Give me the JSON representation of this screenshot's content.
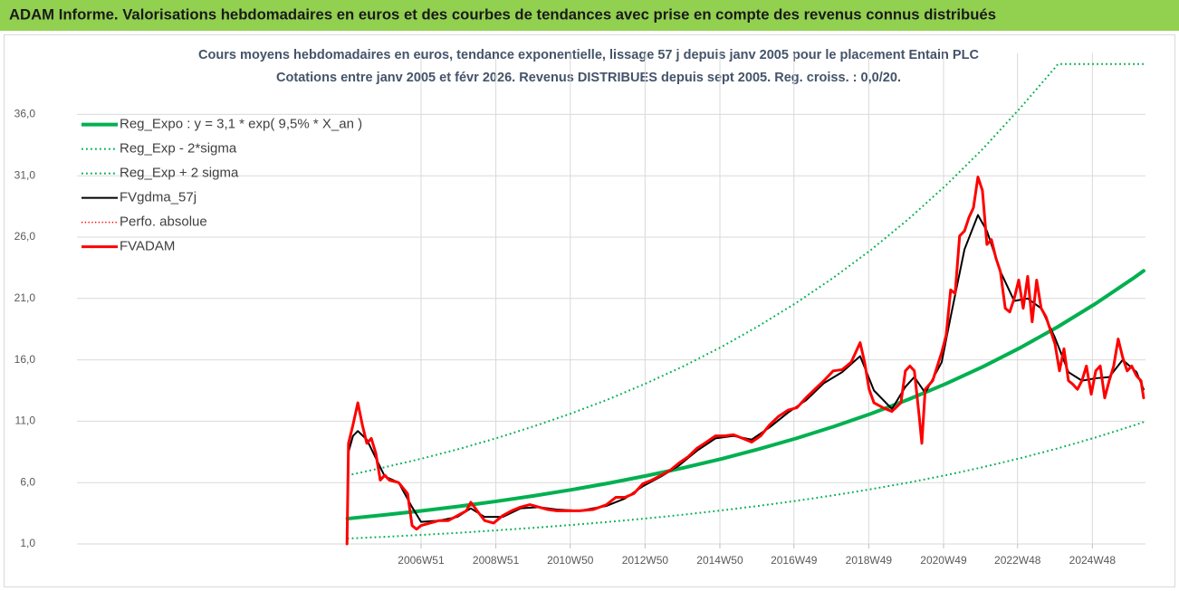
{
  "chart_data": {
    "type": "line",
    "header": "ADAM Informe. Valorisations hebdomadaires en euros et des courbes de tendances avec prise en compte des revenus connus distribués",
    "title": "Cours moyens hebdomadaires en euros, tendance exponentielle, lissage 57 j depuis janv 2005 pour le placement Entain PLC",
    "subtitle": "Cotations entre janv 2005 et févr 2026. Revenus DISTRIBUES depuis sept 2005. Reg. croiss. : 0,0/20.",
    "xlim": [
      1997.77,
      2026.34
    ],
    "ylim": [
      1,
      41
    ],
    "xticks": [
      {
        "value": 2006.97,
        "label": "2006W51"
      },
      {
        "value": 2008.97,
        "label": "2008W51"
      },
      {
        "value": 2010.96,
        "label": "2010W50"
      },
      {
        "value": 2012.96,
        "label": "2012W50"
      },
      {
        "value": 2014.96,
        "label": "2014W50"
      },
      {
        "value": 2016.94,
        "label": "2016W49"
      },
      {
        "value": 2018.94,
        "label": "2018W49"
      },
      {
        "value": 2020.94,
        "label": "2020W49"
      },
      {
        "value": 2022.92,
        "label": "2022W48"
      },
      {
        "value": 2024.92,
        "label": "2024W48"
      }
    ],
    "yticks": [
      {
        "value": 1,
        "label": "1,0"
      },
      {
        "value": 6,
        "label": "6,0"
      },
      {
        "value": 11,
        "label": "11,0"
      },
      {
        "value": 16,
        "label": "16,0"
      },
      {
        "value": 21,
        "label": "21,0"
      },
      {
        "value": 26,
        "label": "26,0"
      },
      {
        "value": 31,
        "label": "31,0"
      },
      {
        "value": 36,
        "label": "36,0"
      }
    ],
    "grid": true,
    "legend": "top-left",
    "series": [
      {
        "name": "Reg_Expo : y = 3,1 * exp( 9,5% *  X_an )",
        "color": "#00b050",
        "line_style": "solid",
        "line_width": 4,
        "x": [
          2005,
          2006,
          2007,
          2008,
          2009,
          2010,
          2011,
          2012,
          2013,
          2014,
          2015,
          2016,
          2017,
          2018,
          2019,
          2020,
          2021,
          2022,
          2023,
          2024,
          2025,
          2026,
          2026.29
        ],
        "values": [
          3.06,
          3.37,
          3.7,
          4.07,
          4.48,
          4.93,
          5.42,
          5.96,
          6.56,
          7.21,
          7.93,
          8.73,
          9.6,
          10.56,
          11.61,
          12.77,
          14.05,
          15.45,
          17.0,
          18.7,
          20.57,
          22.62,
          23.25
        ]
      },
      {
        "name": "Reg_Exp - 2*sigma",
        "color": "#00b050",
        "line_style": "dotted",
        "line_width": 2,
        "x": [
          2005,
          2006,
          2007,
          2008,
          2009,
          2010,
          2011,
          2012,
          2013,
          2014,
          2015,
          2016,
          2017,
          2018,
          2019,
          2020,
          2021,
          2022,
          2023,
          2024,
          2025,
          2026,
          2026.29
        ],
        "values": [
          1.44,
          1.58,
          1.74,
          1.91,
          2.11,
          2.32,
          2.55,
          2.8,
          3.08,
          3.39,
          3.73,
          4.1,
          4.51,
          4.96,
          5.46,
          6.0,
          6.6,
          7.26,
          7.99,
          8.79,
          9.67,
          10.63,
          10.93
        ]
      },
      {
        "name": "Reg_Exp + 2 sigma",
        "color": "#00b050",
        "line_style": "dotted",
        "line_width": 2,
        "x": [
          2005,
          2006,
          2007,
          2008,
          2009,
          2010,
          2011,
          2012,
          2013,
          2014,
          2015,
          2016,
          2017,
          2018,
          2019,
          2020,
          2021,
          2022,
          2023,
          2023.92,
          2024,
          2025,
          2026,
          2026.29
        ],
        "values": [
          6.58,
          7.25,
          7.96,
          8.75,
          9.63,
          10.6,
          11.65,
          12.81,
          14.1,
          15.5,
          17.05,
          18.77,
          20.64,
          22.7,
          24.96,
          27.46,
          30.21,
          33.22,
          36.55,
          39.8,
          40.1,
          40.1,
          40.1,
          40.1
        ]
      },
      {
        "name": "FVgdma_57j",
        "color": "#000000",
        "line_style": "solid",
        "line_width": 2,
        "x": [
          2005.03,
          2005.15,
          2005.28,
          2005.52,
          2005.76,
          2006.0,
          2006.37,
          2006.73,
          2006.97,
          2007.45,
          2007.94,
          2008.3,
          2008.67,
          2009.15,
          2009.63,
          2010.12,
          2010.6,
          2011.21,
          2011.93,
          2012.42,
          2012.9,
          2013.39,
          2013.87,
          2014.35,
          2014.84,
          2015.32,
          2015.81,
          2016.29,
          2016.78,
          2017.26,
          2017.74,
          2018.23,
          2018.71,
          2019.08,
          2019.56,
          2019.92,
          2020.16,
          2020.45,
          2020.89,
          2021.13,
          2021.5,
          2021.86,
          2022.1,
          2022.46,
          2022.83,
          2023.19,
          2023.55,
          2023.92,
          2024.28,
          2024.64,
          2025.01,
          2025.37,
          2025.73,
          2026.1,
          2026.29
        ],
        "values": [
          8.5,
          9.8,
          10.2,
          9.5,
          8.0,
          6.5,
          6.0,
          4.0,
          2.8,
          2.9,
          3.2,
          3.9,
          3.2,
          3.2,
          3.9,
          4.0,
          3.8,
          3.7,
          4.1,
          4.7,
          5.7,
          6.5,
          7.4,
          8.6,
          9.6,
          9.8,
          9.5,
          10.5,
          11.7,
          12.7,
          14.1,
          15.0,
          16.3,
          13.5,
          12.0,
          13.8,
          14.6,
          13.3,
          15.8,
          19.5,
          25.0,
          27.8,
          26.5,
          23.2,
          20.8,
          21.0,
          20.2,
          17.8,
          15.0,
          14.3,
          14.5,
          14.6,
          16.0,
          15.0,
          13.6
        ]
      },
      {
        "name": "Perfo. absolue",
        "color": "#ff0000",
        "line_style": "dotted",
        "line_width": 1.5
      },
      {
        "name": "FVADAM",
        "color": "#ff0000",
        "line_style": "solid",
        "line_width": 3,
        "x": [
          2004.99,
          2005.03,
          2005.15,
          2005.28,
          2005.4,
          2005.52,
          2005.64,
          2005.76,
          2005.88,
          2006.0,
          2006.12,
          2006.37,
          2006.61,
          2006.73,
          2006.85,
          2006.97,
          2007.21,
          2007.45,
          2007.7,
          2007.94,
          2008.18,
          2008.3,
          2008.47,
          2008.67,
          2008.91,
          2009.15,
          2009.39,
          2009.63,
          2009.88,
          2010.12,
          2010.36,
          2010.6,
          2010.84,
          2011.21,
          2011.57,
          2011.93,
          2012.18,
          2012.42,
          2012.66,
          2012.9,
          2013.14,
          2013.39,
          2013.63,
          2013.87,
          2014.11,
          2014.35,
          2014.6,
          2014.84,
          2015.08,
          2015.32,
          2015.57,
          2015.81,
          2016.05,
          2016.29,
          2016.53,
          2016.78,
          2017.02,
          2017.26,
          2017.5,
          2017.74,
          2017.99,
          2018.23,
          2018.47,
          2018.71,
          2018.83,
          2018.95,
          2019.08,
          2019.32,
          2019.56,
          2019.8,
          2019.92,
          2020.04,
          2020.16,
          2020.29,
          2020.36,
          2020.45,
          2020.65,
          2020.89,
          2021.01,
          2021.13,
          2021.25,
          2021.37,
          2021.5,
          2021.62,
          2021.74,
          2021.86,
          2021.98,
          2022.1,
          2022.22,
          2022.34,
          2022.46,
          2022.59,
          2022.71,
          2022.83,
          2022.95,
          2023.07,
          2023.19,
          2023.31,
          2023.43,
          2023.55,
          2023.68,
          2023.8,
          2023.92,
          2024.04,
          2024.16,
          2024.28,
          2024.4,
          2024.52,
          2024.64,
          2024.76,
          2024.89,
          2025.01,
          2025.13,
          2025.25,
          2025.37,
          2025.49,
          2025.61,
          2025.73,
          2025.85,
          2025.97,
          2026.1,
          2026.22,
          2026.29
        ],
        "values": [
          1.0,
          9.2,
          10.7,
          12.5,
          10.7,
          9.2,
          9.6,
          8.4,
          6.2,
          6.6,
          6.2,
          6.0,
          5.1,
          2.5,
          2.2,
          2.5,
          2.7,
          2.9,
          2.9,
          3.3,
          3.7,
          4.4,
          3.7,
          2.9,
          2.7,
          3.3,
          3.7,
          4.0,
          4.2,
          4.0,
          3.8,
          3.7,
          3.7,
          3.7,
          3.8,
          4.2,
          4.8,
          4.8,
          5.1,
          5.9,
          6.2,
          6.6,
          7.0,
          7.6,
          8.1,
          8.8,
          9.3,
          9.8,
          9.8,
          9.9,
          9.6,
          9.3,
          9.8,
          10.7,
          11.4,
          11.9,
          12.1,
          12.9,
          13.6,
          14.3,
          15.1,
          15.2,
          15.8,
          17.4,
          15.8,
          13.6,
          12.5,
          12.1,
          11.8,
          12.5,
          15.1,
          15.5,
          15.1,
          11.4,
          9.2,
          13.6,
          14.3,
          16.6,
          18.0,
          21.7,
          21.4,
          26.1,
          26.5,
          27.6,
          28.4,
          30.9,
          29.8,
          25.4,
          25.8,
          24.3,
          23.2,
          20.2,
          19.9,
          21.0,
          22.5,
          20.2,
          22.8,
          19.1,
          22.5,
          20.2,
          19.5,
          18.4,
          17.3,
          15.1,
          16.9,
          14.3,
          14.0,
          13.6,
          14.3,
          15.5,
          13.2,
          15.1,
          15.5,
          12.9,
          14.3,
          15.5,
          17.7,
          16.2,
          15.1,
          15.5,
          14.7,
          14.3,
          12.9
        ]
      }
    ]
  }
}
